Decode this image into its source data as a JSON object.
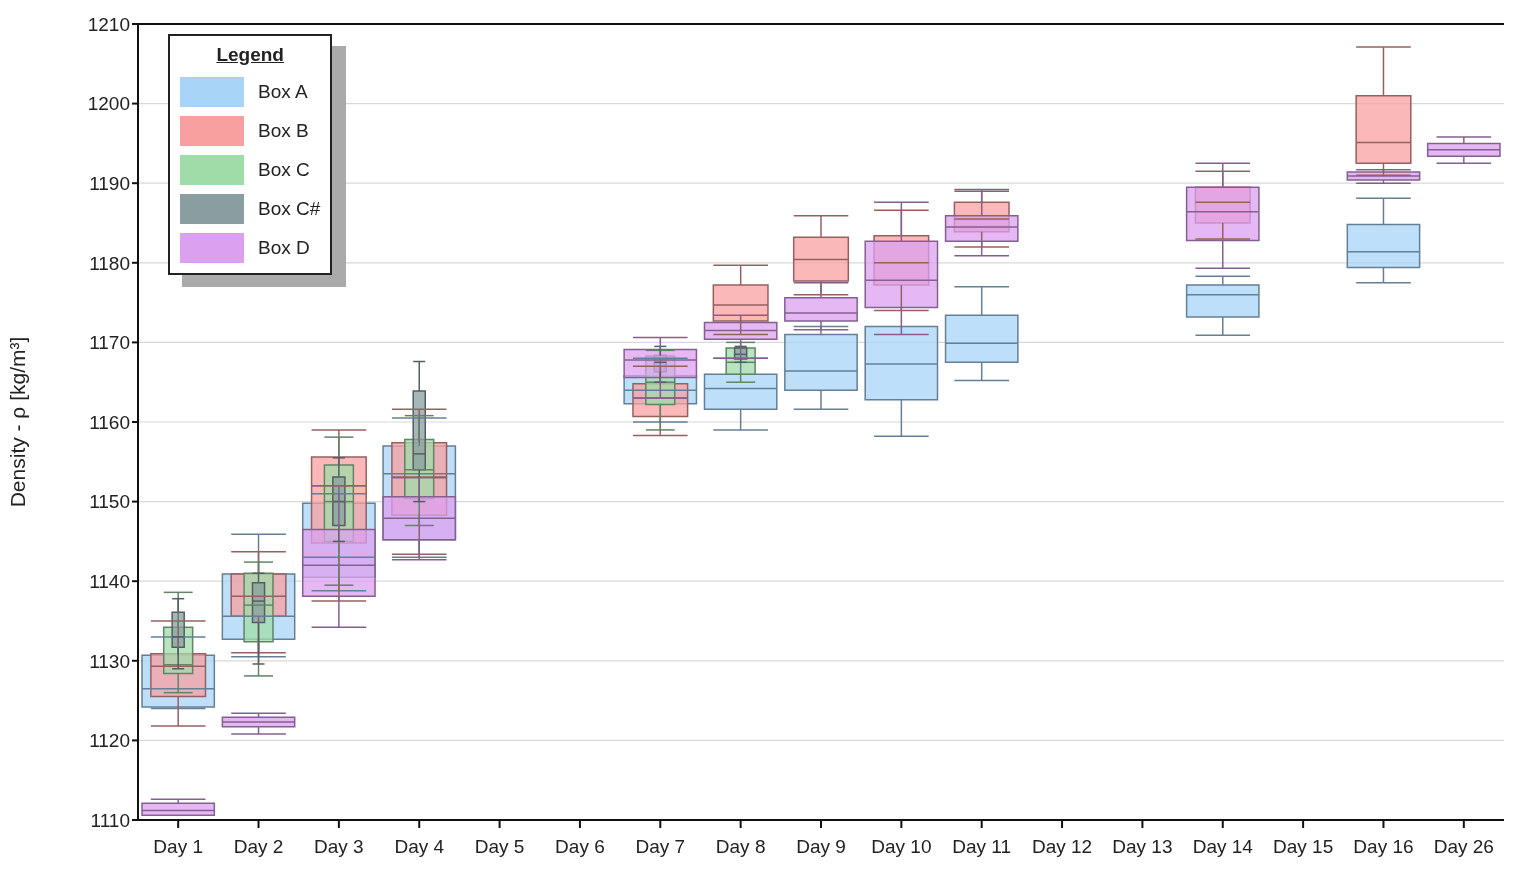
{
  "chart_data": {
    "type": "box",
    "ylabel": "Density - ρ [kg/m³]",
    "legend_title": "Legend",
    "categories": [
      "Day 1",
      "Day 2",
      "Day 3",
      "Day 4",
      "Day 5",
      "Day 6",
      "Day 7",
      "Day 8",
      "Day 9",
      "Day 10",
      "Day 11",
      "Day 12",
      "Day 13",
      "Day 14",
      "Day 15",
      "Day 16",
      "Day 26"
    ],
    "ylim": [
      1110,
      1210
    ],
    "yticks": [
      1110,
      1120,
      1130,
      1140,
      1150,
      1160,
      1170,
      1180,
      1190,
      1200,
      1210
    ],
    "grid": "y",
    "legend": "top left",
    "series": [
      {
        "name": "Box A",
        "color": "#a8d4f8",
        "boxes": [
          {
            "low": 1124,
            "q1": 1124.2,
            "median": 1126.5,
            "q3": 1130.7,
            "high": 1133
          },
          {
            "low": 1130.5,
            "q1": 1132.7,
            "median": 1135.6,
            "q3": 1140.9,
            "high": 1145.9
          },
          {
            "low": 1138.8,
            "q1": 1140.5,
            "median": 1143,
            "q3": 1149.8,
            "high": 1151
          },
          {
            "low": 1143,
            "q1": 1145.2,
            "median": 1153.5,
            "q3": 1157,
            "high": 1160.5
          },
          null,
          null,
          {
            "low": 1160,
            "q1": 1162.3,
            "median": 1164,
            "q3": 1165.8,
            "high": 1168
          },
          {
            "low": 1159,
            "q1": 1161.6,
            "median": 1164.2,
            "q3": 1166,
            "high": 1168
          },
          {
            "low": 1161.6,
            "q1": 1164,
            "median": 1166.4,
            "q3": 1171,
            "high": 1172
          },
          {
            "low": 1158.2,
            "q1": 1162.8,
            "median": 1167.3,
            "q3": 1172,
            "high": 1172
          },
          {
            "low": 1165.2,
            "q1": 1167.5,
            "median": 1169.9,
            "q3": 1173.4,
            "high": 1177
          },
          null,
          null,
          {
            "low": 1170.9,
            "q1": 1173.2,
            "median": 1176,
            "q3": 1177.2,
            "high": 1178.3
          },
          null,
          {
            "low": 1177.5,
            "q1": 1179.4,
            "median": 1181.4,
            "q3": 1184.8,
            "high": 1188.1
          },
          null
        ]
      },
      {
        "name": "Box B",
        "color": "#f8a0a0",
        "boxes": [
          {
            "low": 1121.8,
            "q1": 1125.5,
            "median": 1129.3,
            "q3": 1130.9,
            "high": 1135
          },
          {
            "low": 1131,
            "q1": 1135.6,
            "median": 1138.1,
            "q3": 1140.9,
            "high": 1143.7
          },
          {
            "low": 1137.5,
            "q1": 1144.8,
            "median": 1152,
            "q3": 1155.6,
            "high": 1159
          },
          {
            "low": 1143.4,
            "q1": 1148.3,
            "median": 1153.1,
            "q3": 1157.4,
            "high": 1161.6
          },
          null,
          null,
          {
            "low": 1158.3,
            "q1": 1160.7,
            "median": 1163,
            "q3": 1164.8,
            "high": 1167
          },
          {
            "low": 1171,
            "q1": 1172.7,
            "median": 1174.7,
            "q3": 1177.2,
            "high": 1179.7
          },
          {
            "low": 1176,
            "q1": 1177.7,
            "median": 1180.4,
            "q3": 1183.2,
            "high": 1185.9
          },
          {
            "low": 1174,
            "q1": 1177.2,
            "median": 1180,
            "q3": 1183.4,
            "high": 1186.6
          },
          {
            "low": 1182,
            "q1": 1183.9,
            "median": 1185.5,
            "q3": 1187.6,
            "high": 1189.2
          },
          null,
          null,
          {
            "low": 1183,
            "q1": 1185,
            "median": 1187.6,
            "q3": 1189.5,
            "high": 1191.5
          },
          null,
          {
            "low": 1191,
            "q1": 1192.5,
            "median": 1195.1,
            "q3": 1201,
            "high": 1207.1
          },
          null
        ]
      },
      {
        "name": "Box C",
        "color": "#a0dca8",
        "boxes": [
          {
            "low": 1126,
            "q1": 1128.4,
            "median": 1129.5,
            "q3": 1134.2,
            "high": 1138.6
          },
          {
            "low": 1128.1,
            "q1": 1132.4,
            "median": 1137,
            "q3": 1141,
            "high": 1142.4
          },
          {
            "low": 1139.5,
            "q1": 1145,
            "median": 1150,
            "q3": 1154.6,
            "high": 1158.1
          },
          {
            "low": 1147,
            "q1": 1150.4,
            "median": 1154,
            "q3": 1157.8,
            "high": 1160.8
          },
          null,
          null,
          {
            "low": 1159,
            "q1": 1162.2,
            "median": 1165,
            "q3": 1168.3,
            "high": 1169
          },
          {
            "low": 1165,
            "q1": 1166,
            "median": 1167.5,
            "q3": 1169.3,
            "high": 1170
          },
          null,
          null,
          null,
          null,
          null,
          null,
          null,
          null,
          null
        ]
      },
      {
        "name": "Box C#",
        "color": "#8a9ea0",
        "boxes": [
          {
            "low": 1129,
            "q1": 1131.7,
            "median": 1133,
            "q3": 1136.1,
            "high": 1137.8
          },
          {
            "low": 1129.6,
            "q1": 1134.8,
            "median": 1137.5,
            "q3": 1139.8,
            "high": 1141
          },
          {
            "low": 1145,
            "q1": 1147,
            "median": 1150,
            "q3": 1153.1,
            "high": 1155.5
          },
          {
            "low": 1150,
            "q1": 1154,
            "median": 1156,
            "q3": 1163.9,
            "high": 1167.6
          },
          null,
          null,
          {
            "low": 1165,
            "q1": 1166.3,
            "median": 1167.5,
            "q3": 1168.4,
            "high": 1169.5
          },
          {
            "low": 1167.5,
            "q1": 1167.9,
            "median": 1168.5,
            "q3": 1169.3,
            "high": 1169.5
          },
          null,
          null,
          null,
          null,
          null,
          null,
          null,
          null,
          null
        ]
      },
      {
        "name": "Box D",
        "color": "#dca0f0",
        "boxes": [
          {
            "low": 1110.6,
            "q1": 1110.6,
            "median": 1111.2,
            "q3": 1112.1,
            "high": 1112.6
          },
          {
            "low": 1120.8,
            "q1": 1121.7,
            "median": 1122.3,
            "q3": 1122.9,
            "high": 1123.4
          },
          {
            "low": 1134.2,
            "q1": 1138.1,
            "median": 1142,
            "q3": 1146.5,
            "high": 1152
          },
          {
            "low": 1142.7,
            "q1": 1145.2,
            "median": 1147.9,
            "q3": 1150.6,
            "high": 1153
          },
          null,
          null,
          {
            "low": 1163,
            "q1": 1165.6,
            "median": 1167.8,
            "q3": 1169.1,
            "high": 1170.6
          },
          {
            "low": 1168,
            "q1": 1170.4,
            "median": 1171.5,
            "q3": 1172.5,
            "high": 1173.4
          },
          {
            "low": 1171.6,
            "q1": 1172.7,
            "median": 1173.7,
            "q3": 1175.6,
            "high": 1177.5
          },
          {
            "low": 1171,
            "q1": 1174.4,
            "median": 1177.8,
            "q3": 1182.7,
            "high": 1187.6
          },
          {
            "low": 1180.9,
            "q1": 1182.7,
            "median": 1184.5,
            "q3": 1185.9,
            "high": 1189
          },
          null,
          null,
          {
            "low": 1179.3,
            "q1": 1182.8,
            "median": 1186.4,
            "q3": 1189.5,
            "high": 1192.5
          },
          null,
          {
            "low": 1190,
            "q1": 1190.4,
            "median": 1190.9,
            "q3": 1191.4,
            "high": 1191.7
          },
          {
            "low": 1192.5,
            "q1": 1193.4,
            "median": 1194.2,
            "q3": 1195,
            "high": 1195.8
          }
        ]
      }
    ]
  }
}
